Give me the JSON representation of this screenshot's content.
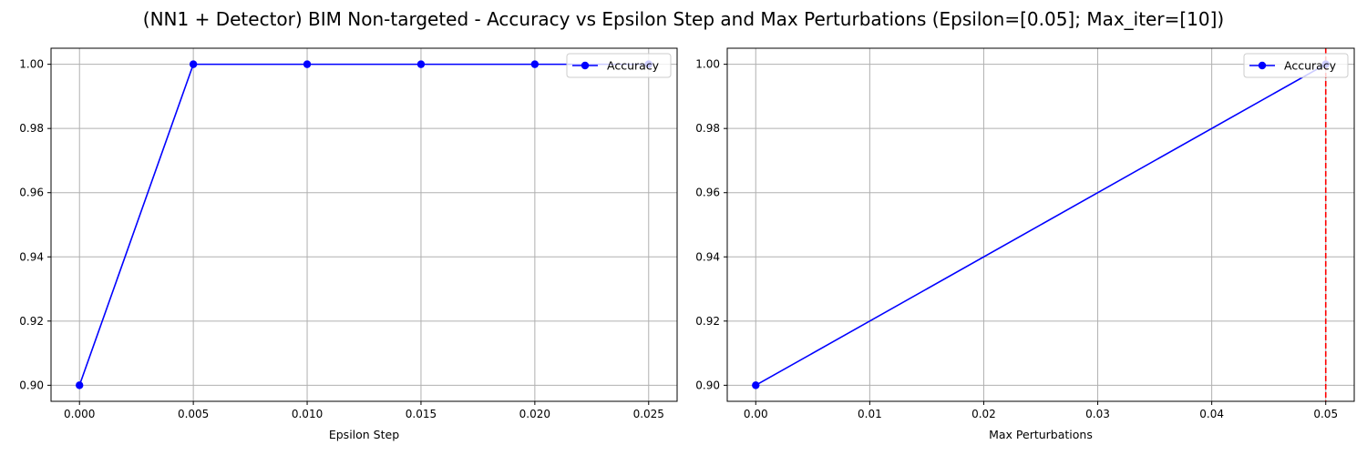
{
  "figure": {
    "title": "(NN1 + Detector) BIM Non-targeted - Accuracy vs Epsilon Step and Max Perturbations (Epsilon=[0.05]; Max_iter=[10])"
  },
  "chart_data": [
    {
      "type": "line",
      "xlabel": "Epsilon Step",
      "ylabel": "",
      "x": [
        0.0,
        0.005,
        0.01,
        0.015,
        0.02,
        0.025
      ],
      "series": [
        {
          "name": "Accuracy",
          "values": [
            0.9,
            1.0,
            1.0,
            1.0,
            1.0,
            1.0
          ],
          "color": "#0000ff",
          "marker": "circle"
        }
      ],
      "xlim": [
        -0.00125,
        0.02625
      ],
      "ylim": [
        0.895,
        1.005
      ],
      "xticks": [
        "0.000",
        "0.005",
        "0.010",
        "0.015",
        "0.020",
        "0.025"
      ],
      "yticks": [
        "0.90",
        "0.92",
        "0.94",
        "0.96",
        "0.98",
        "1.00"
      ],
      "grid": true,
      "legend": "upper right"
    },
    {
      "type": "line",
      "xlabel": "Max Perturbations",
      "ylabel": "",
      "x": [
        0.0,
        0.05
      ],
      "series": [
        {
          "name": "Accuracy",
          "values": [
            0.9,
            1.0
          ],
          "color": "#0000ff",
          "marker": "circle"
        }
      ],
      "vline": {
        "x": 0.05,
        "color": "#ff0000",
        "style": "dashed"
      },
      "xlim": [
        -0.0025,
        0.0525
      ],
      "ylim": [
        0.895,
        1.005
      ],
      "xticks": [
        "0.00",
        "0.01",
        "0.02",
        "0.03",
        "0.04",
        "0.05"
      ],
      "yticks": [
        "0.90",
        "0.92",
        "0.94",
        "0.96",
        "0.98",
        "1.00"
      ],
      "grid": true,
      "legend": "upper right"
    }
  ]
}
